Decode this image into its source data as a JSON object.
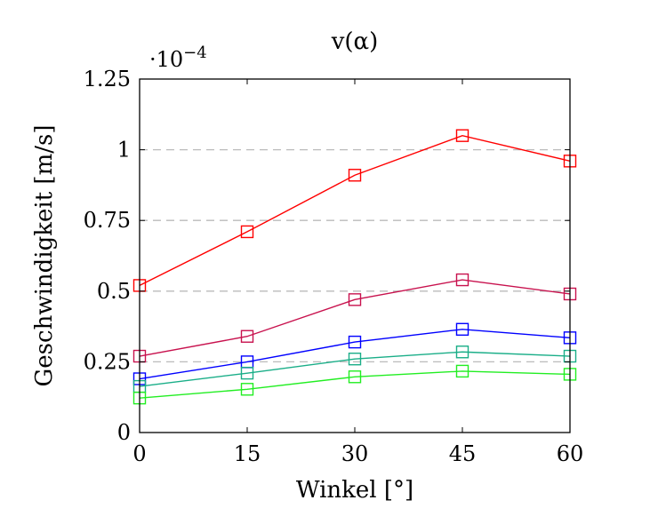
{
  "chart_data": {
    "type": "line",
    "title": "v(α)",
    "xlabel": "Winkel [°]",
    "ylabel": "Geschwindigkeit [m/s]",
    "y_scale_label": "·10",
    "y_scale_exponent": "−4",
    "x": [
      0,
      15,
      30,
      45,
      60
    ],
    "xlim": [
      0,
      60
    ],
    "ylim": [
      0,
      1.25
    ],
    "xticks": [
      "0",
      "15",
      "30",
      "45",
      "60"
    ],
    "yticks": [
      "0",
      "0.25",
      "0.5",
      "0.75",
      "1",
      "1.25"
    ],
    "ytick_values": [
      0,
      0.25,
      0.5,
      0.75,
      1,
      1.25
    ],
    "grid": "horizontal dashed",
    "marker": "square",
    "series": [
      {
        "color": "#ff0000",
        "values": [
          0.52,
          0.71,
          0.91,
          1.05,
          0.96
        ]
      },
      {
        "color": "#c8124e",
        "values": [
          0.27,
          0.34,
          0.47,
          0.54,
          0.49
        ]
      },
      {
        "color": "#0000ff",
        "values": [
          0.19,
          0.25,
          0.32,
          0.365,
          0.335
        ]
      },
      {
        "color": "#1aae88",
        "values": [
          0.163,
          0.21,
          0.26,
          0.285,
          0.27
        ]
      },
      {
        "color": "#22ee22",
        "values": [
          0.122,
          0.153,
          0.197,
          0.217,
          0.206
        ]
      }
    ]
  }
}
